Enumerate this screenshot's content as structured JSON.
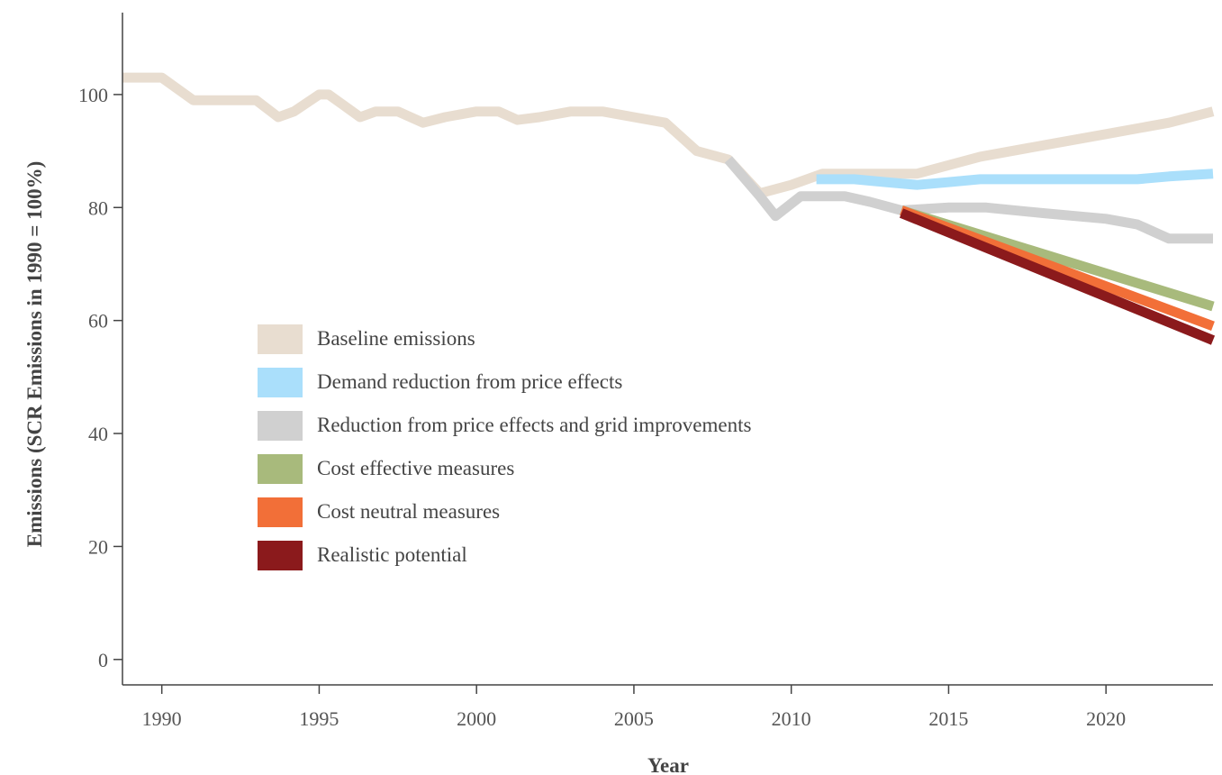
{
  "chart_data": {
    "type": "line",
    "title": "",
    "xlabel": "Year",
    "ylabel": "Emissions (SCR Emissions in 1990 = 100%)",
    "xlim": [
      1988.75,
      2023.4
    ],
    "ylim": [
      -4.5,
      114.5
    ],
    "xticks": [
      1990,
      1995,
      2000,
      2005,
      2010,
      2015,
      2020
    ],
    "yticks": [
      0,
      20,
      40,
      60,
      80,
      100
    ],
    "grid": false,
    "legend_position": "center-left",
    "series": [
      {
        "name": "Baseline emissions",
        "color": "#e8ddd0",
        "x": [
          1988.75,
          1990,
          1991,
          1992,
          1993,
          1993.7,
          1994.2,
          1995,
          1995.3,
          1996.3,
          1996.8,
          1997.5,
          1998.3,
          1999,
          2000,
          2000.7,
          2001.3,
          2002,
          2003,
          2004,
          2005,
          2006,
          2007,
          2008,
          2009,
          2010,
          2011,
          2012,
          2013,
          2014,
          2015,
          2016,
          2018,
          2020,
          2022,
          2023.4
        ],
        "y": [
          103,
          103,
          99,
          99,
          99,
          96,
          97,
          100,
          100,
          96,
          97,
          97,
          95,
          96,
          97,
          97,
          95.5,
          96,
          97,
          97,
          96,
          95,
          90,
          88.5,
          82.5,
          84,
          86,
          86,
          86,
          86,
          87.5,
          89,
          91,
          93,
          95,
          97
        ]
      },
      {
        "name": "Demand reduction from price effects",
        "color": "#aadffb",
        "x": [
          2010.8,
          2012,
          2013,
          2014,
          2015,
          2016,
          2018,
          2020,
          2021,
          2022,
          2023.4
        ],
        "y": [
          85,
          85,
          84.5,
          84,
          84.5,
          85,
          85,
          85,
          85,
          85.5,
          86
        ]
      },
      {
        "name": "Reduction from price effects and grid improvements",
        "color": "#d0d0d0",
        "x": [
          2008,
          2009,
          2009.5,
          2010.3,
          2011.7,
          2012.5,
          2013.5,
          2015,
          2016.2,
          2018,
          2020,
          2021,
          2022,
          2023.4
        ],
        "y": [
          88.5,
          82,
          78.5,
          82,
          82,
          81,
          79.5,
          80,
          80,
          79,
          78,
          77,
          74.5,
          74.5
        ]
      },
      {
        "name": "Cost effective measures",
        "color": "#a8ba7c",
        "x": [
          2013.5,
          2023.4
        ],
        "y": [
          79.5,
          62.5
        ]
      },
      {
        "name": "Cost neutral measures",
        "color": "#f26f38",
        "x": [
          2013.5,
          2023.4
        ],
        "y": [
          79.5,
          59
        ]
      },
      {
        "name": "Realistic potential",
        "color": "#8b1a1c",
        "x": [
          2013.5,
          2023.4
        ],
        "y": [
          79,
          56.5
        ]
      }
    ]
  }
}
